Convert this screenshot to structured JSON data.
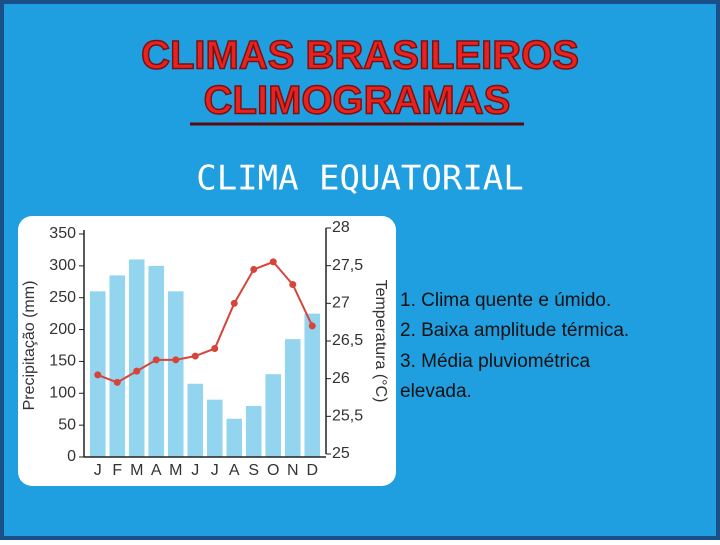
{
  "slide": {
    "title": "CLIMAS BRASILEIROS",
    "subtitle": "CLIMOGRAMAS",
    "heading": "CLIMA EQUATORIAL",
    "notes": [
      "1. Clima quente e úmido.",
      "2. Baixa amplitude térmica.",
      "3.  Média pluviométrica",
      "elevada."
    ]
  },
  "chart_data": {
    "type": "bar",
    "categories": [
      "J",
      "F",
      "M",
      "A",
      "M",
      "J",
      "J",
      "A",
      "S",
      "O",
      "N",
      "D"
    ],
    "y_label": "Precipitação (mm)",
    "y2_label": "Temperatura (°C)",
    "ylim": [
      0,
      350
    ],
    "yticks": [
      0,
      50,
      100,
      150,
      200,
      250,
      300,
      350
    ],
    "y2lim": [
      25,
      28
    ],
    "y2ticks": [
      25,
      {
        "value": 25.5,
        "label": "25,5"
      },
      26,
      {
        "value": 26.5,
        "label": "26,5"
      },
      27,
      {
        "value": 27.5,
        "label": "27,5"
      },
      28
    ],
    "series": [
      {
        "name": "Precipitação",
        "type": "bar",
        "color": "#93d4ef",
        "values": [
          260,
          285,
          310,
          300,
          260,
          115,
          90,
          60,
          80,
          130,
          185,
          225
        ]
      },
      {
        "name": "Temperatura",
        "type": "line",
        "axis": "y2",
        "color": "#d8433a",
        "values": [
          26.05,
          25.95,
          26.1,
          26.25,
          26.25,
          26.3,
          26.4,
          27.0,
          27.45,
          27.55,
          27.25,
          26.7
        ]
      }
    ]
  }
}
